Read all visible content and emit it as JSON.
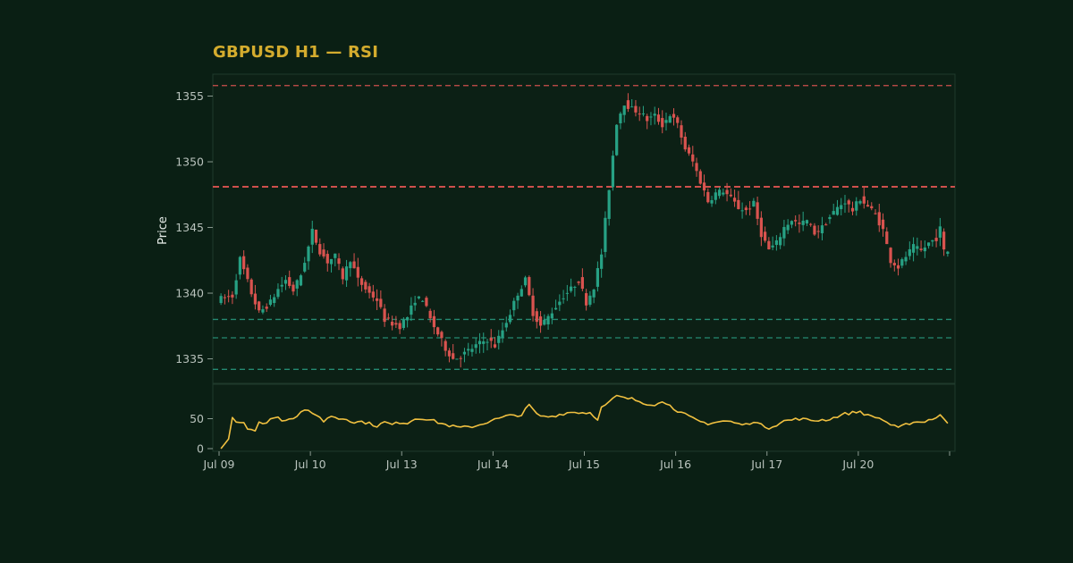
{
  "title": "GBPUSD H1 — RSI",
  "colors": {
    "background": "#0a1f14",
    "panel": "#0c2015",
    "border": "#1f3a2c",
    "title": "#d4ac2e",
    "up": "#27a184",
    "down": "#d9534f",
    "rsi": "#f0c040",
    "resistance": "#d9534f",
    "support": "#2a9d83",
    "tick": "#b9c3bd"
  },
  "chart_data": {
    "type": "candlestick",
    "xlabel": "",
    "ylabel": "Price",
    "ylim": [
      1333.2,
      1356.6
    ],
    "yticks": [
      1335,
      1340,
      1345,
      1350,
      1355
    ],
    "rsi_ylim": [
      0,
      100
    ],
    "rsi_yticks": [
      0,
      50
    ],
    "x_ticks": [
      {
        "label": "Jul 09",
        "bar": 0
      },
      {
        "label": "Jul 10",
        "bar": 24
      },
      {
        "label": "Jul 13",
        "bar": 48
      },
      {
        "label": "Jul 14",
        "bar": 72
      },
      {
        "label": "Jul 15",
        "bar": 96
      },
      {
        "label": "Jul 16",
        "bar": 120
      },
      {
        "label": "Jul 17",
        "bar": 144
      },
      {
        "label": "Jul 20",
        "bar": 168
      },
      {
        "label": "",
        "bar": 192
      }
    ],
    "bar_count": 192,
    "horizontal_levels": [
      {
        "kind": "resistance",
        "price": 1355.8,
        "style": "thin-dashed"
      },
      {
        "kind": "resistance",
        "price": 1348.1,
        "style": "bold-dashed"
      },
      {
        "kind": "support",
        "price": 1338.0,
        "style": "dashed"
      },
      {
        "kind": "support",
        "price": 1336.6,
        "style": "dashed"
      },
      {
        "kind": "support",
        "price": 1334.2,
        "style": "dashed"
      }
    ],
    "price_path": [
      [
        0,
        1339.5
      ],
      [
        4,
        1339.8
      ],
      [
        6,
        1342.6
      ],
      [
        9,
        1340.0
      ],
      [
        11,
        1338.5
      ],
      [
        14,
        1339.3
      ],
      [
        16,
        1340.3
      ],
      [
        18,
        1341.0
      ],
      [
        20,
        1340.2
      ],
      [
        22,
        1341.4
      ],
      [
        24,
        1343.5
      ],
      [
        25,
        1344.7
      ],
      [
        27,
        1343.2
      ],
      [
        29,
        1342.4
      ],
      [
        31,
        1342.8
      ],
      [
        33,
        1341.2
      ],
      [
        35,
        1342.6
      ],
      [
        37,
        1341.0
      ],
      [
        40,
        1340.0
      ],
      [
        42,
        1339.5
      ],
      [
        44,
        1338.0
      ],
      [
        46,
        1337.7
      ],
      [
        48,
        1337.5
      ],
      [
        50,
        1338.2
      ],
      [
        52,
        1339.5
      ],
      [
        54,
        1339.6
      ],
      [
        56,
        1338.0
      ],
      [
        58,
        1336.9
      ],
      [
        60,
        1335.8
      ],
      [
        62,
        1335.0
      ],
      [
        64,
        1335.2
      ],
      [
        66,
        1335.6
      ],
      [
        68,
        1336.0
      ],
      [
        71,
        1336.5
      ],
      [
        73,
        1336.0
      ],
      [
        75,
        1337.2
      ],
      [
        77,
        1338.5
      ],
      [
        79,
        1340.0
      ],
      [
        81,
        1341.0
      ],
      [
        83,
        1338.5
      ],
      [
        85,
        1337.5
      ],
      [
        87,
        1338.2
      ],
      [
        89,
        1339.0
      ],
      [
        91,
        1339.8
      ],
      [
        93,
        1340.3
      ],
      [
        95,
        1341.0
      ],
      [
        97,
        1339.3
      ],
      [
        99,
        1340.5
      ],
      [
        101,
        1343.0
      ],
      [
        103,
        1348.0
      ],
      [
        105,
        1353.0
      ],
      [
        107,
        1354.5
      ],
      [
        109,
        1354.0
      ],
      [
        111,
        1353.8
      ],
      [
        113,
        1353.2
      ],
      [
        115,
        1353.5
      ],
      [
        117,
        1352.8
      ],
      [
        119,
        1353.6
      ],
      [
        121,
        1352.8
      ],
      [
        123,
        1351.0
      ],
      [
        125,
        1350.0
      ],
      [
        127,
        1348.5
      ],
      [
        129,
        1347.0
      ],
      [
        131,
        1347.6
      ],
      [
        133,
        1347.8
      ],
      [
        135,
        1347.2
      ],
      [
        137,
        1346.5
      ],
      [
        139,
        1346.3
      ],
      [
        141,
        1346.8
      ],
      [
        143,
        1344.5
      ],
      [
        145,
        1343.3
      ],
      [
        147,
        1343.8
      ],
      [
        149,
        1345.0
      ],
      [
        151,
        1345.6
      ],
      [
        153,
        1345.2
      ],
      [
        155,
        1345.5
      ],
      [
        157,
        1344.6
      ],
      [
        159,
        1345.0
      ],
      [
        161,
        1345.8
      ],
      [
        163,
        1346.5
      ],
      [
        165,
        1347.0
      ],
      [
        167,
        1346.3
      ],
      [
        169,
        1347.2
      ],
      [
        171,
        1346.6
      ],
      [
        173,
        1346.0
      ],
      [
        175,
        1344.8
      ],
      [
        177,
        1342.5
      ],
      [
        179,
        1342.0
      ],
      [
        181,
        1342.8
      ],
      [
        183,
        1343.5
      ],
      [
        185,
        1343.2
      ],
      [
        187,
        1343.8
      ],
      [
        189,
        1344.2
      ],
      [
        190,
        1344.9
      ],
      [
        191,
        1343.2
      ]
    ],
    "rsi_path": [
      [
        0,
        0
      ],
      [
        2,
        16
      ],
      [
        3,
        52
      ],
      [
        4,
        45
      ],
      [
        6,
        44
      ],
      [
        7,
        35
      ],
      [
        9,
        30
      ],
      [
        10,
        43
      ],
      [
        11,
        40
      ],
      [
        13,
        50
      ],
      [
        15,
        52
      ],
      [
        16,
        48
      ],
      [
        18,
        50
      ],
      [
        20,
        55
      ],
      [
        22,
        66
      ],
      [
        24,
        57
      ],
      [
        26,
        54
      ],
      [
        27,
        45
      ],
      [
        29,
        55
      ],
      [
        31,
        50
      ],
      [
        33,
        50
      ],
      [
        35,
        44
      ],
      [
        37,
        45
      ],
      [
        39,
        42
      ],
      [
        41,
        38
      ],
      [
        43,
        44
      ],
      [
        45,
        40
      ],
      [
        47,
        44
      ],
      [
        49,
        43
      ],
      [
        51,
        50
      ],
      [
        53,
        51
      ],
      [
        55,
        48
      ],
      [
        57,
        44
      ],
      [
        59,
        40
      ],
      [
        61,
        37
      ],
      [
        63,
        35
      ],
      [
        65,
        36
      ],
      [
        67,
        38
      ],
      [
        69,
        42
      ],
      [
        71,
        47
      ],
      [
        73,
        50
      ],
      [
        75,
        54
      ],
      [
        77,
        56
      ],
      [
        79,
        56
      ],
      [
        81,
        73
      ],
      [
        83,
        57
      ],
      [
        85,
        53
      ],
      [
        87,
        54
      ],
      [
        89,
        57
      ],
      [
        91,
        60
      ],
      [
        93,
        61
      ],
      [
        95,
        60
      ],
      [
        97,
        60
      ],
      [
        99,
        50
      ],
      [
        100,
        68
      ],
      [
        102,
        77
      ],
      [
        104,
        88
      ],
      [
        106,
        84
      ],
      [
        108,
        83
      ],
      [
        110,
        79
      ],
      [
        112,
        75
      ],
      [
        114,
        74
      ],
      [
        116,
        77
      ],
      [
        118,
        75
      ],
      [
        120,
        60
      ],
      [
        122,
        57
      ],
      [
        124,
        50
      ],
      [
        126,
        45
      ],
      [
        128,
        42
      ],
      [
        130,
        44
      ],
      [
        132,
        46
      ],
      [
        134,
        45
      ],
      [
        136,
        41
      ],
      [
        138,
        40
      ],
      [
        140,
        46
      ],
      [
        142,
        39
      ],
      [
        144,
        35
      ],
      [
        146,
        40
      ],
      [
        148,
        46
      ],
      [
        150,
        48
      ],
      [
        152,
        50
      ],
      [
        154,
        48
      ],
      [
        156,
        47
      ],
      [
        158,
        48
      ],
      [
        160,
        49
      ],
      [
        162,
        54
      ],
      [
        164,
        58
      ],
      [
        166,
        60
      ],
      [
        168,
        62
      ],
      [
        170,
        55
      ],
      [
        172,
        53
      ],
      [
        174,
        48
      ],
      [
        176,
        40
      ],
      [
        178,
        34
      ],
      [
        180,
        40
      ],
      [
        182,
        45
      ],
      [
        184,
        44
      ],
      [
        186,
        48
      ],
      [
        188,
        52
      ],
      [
        189,
        56
      ],
      [
        190,
        48
      ],
      [
        191,
        43
      ]
    ]
  }
}
